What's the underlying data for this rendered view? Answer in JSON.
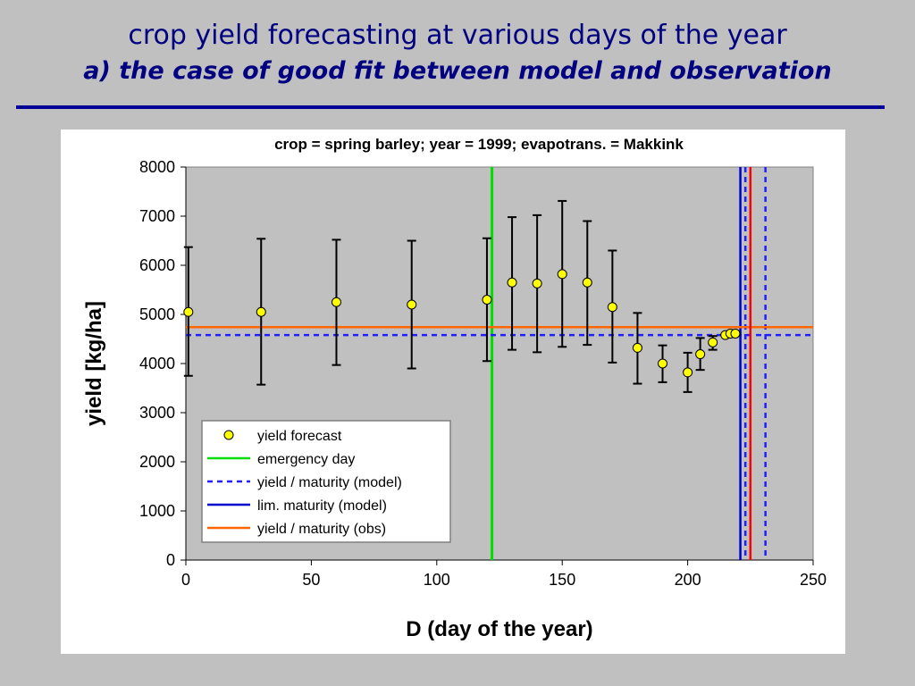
{
  "slide": {
    "title_line1": "crop yield forecasting at various days of the year",
    "title_line2": "a) the case of good fit between model and observation"
  },
  "colors": {
    "background": "#c0c0c0",
    "title": "#000080",
    "plot_area": "#c0c0c0",
    "forecast_marker": "#ffff00",
    "emergency_day": "#00dd00",
    "model_yield": "#1f1fff",
    "model_maturity": "#0000cc",
    "observed": "#ff6600",
    "observed_maturity": "#ff0000"
  },
  "chart_data": {
    "type": "scatter",
    "title": "crop = spring barley; year = 1999; evapotrans. = Makkink",
    "xlabel": "D  (day of the year)",
    "ylabel": "yield  [kg/ha]",
    "xlim": [
      0,
      250
    ],
    "ylim": [
      0,
      8000
    ],
    "xticks": [
      0,
      50,
      100,
      150,
      200,
      250
    ],
    "yticks": [
      0,
      1000,
      2000,
      3000,
      4000,
      5000,
      6000,
      7000,
      8000
    ],
    "grid": false,
    "legend_position": "lower-left",
    "series": [
      {
        "name": "yield forecast",
        "x": [
          1,
          30,
          60,
          90,
          120,
          130,
          140,
          150,
          160,
          170,
          180,
          190,
          200,
          205,
          210,
          215,
          217,
          219
        ],
        "y": [
          5050,
          5050,
          5250,
          5200,
          5300,
          5650,
          5630,
          5820,
          5650,
          5150,
          4320,
          4000,
          3820,
          4190,
          4430,
          4580,
          4610,
          4610
        ],
        "err_low": [
          3750,
          3570,
          3970,
          3900,
          4050,
          4280,
          4230,
          4340,
          4380,
          4020,
          3590,
          3620,
          3420,
          3870,
          4280,
          null,
          null,
          null
        ],
        "err_high": [
          6370,
          6540,
          6520,
          6500,
          6550,
          6980,
          7020,
          7310,
          6900,
          6300,
          5030,
          4370,
          4220,
          4520,
          4560,
          null,
          null,
          null
        ]
      }
    ],
    "reference_lines": [
      {
        "name": "emergency day",
        "orientation": "vertical",
        "value": 122,
        "style": "solid"
      },
      {
        "name": "yield / maturity (model)",
        "orientation": "horizontal",
        "value": 4580,
        "style": "dashed"
      },
      {
        "name": "yield / maturity (model)",
        "orientation": "vertical",
        "value": 223,
        "style": "dashed"
      },
      {
        "name": "yield / maturity (model)",
        "orientation": "vertical",
        "value": 231,
        "style": "dashed"
      },
      {
        "name": "lim. maturity (model)",
        "orientation": "vertical",
        "value": 221,
        "style": "solid"
      },
      {
        "name": "yield / maturity (obs)",
        "orientation": "horizontal",
        "value": 4740,
        "style": "solid"
      },
      {
        "name": "yield / maturity (obs)",
        "orientation": "vertical",
        "value": 225,
        "style": "solid"
      }
    ],
    "legend": [
      {
        "label": "yield forecast",
        "symbol": "marker"
      },
      {
        "label": "emergency day",
        "symbol": "line-solid-green"
      },
      {
        "label": "yield / maturity (model)",
        "symbol": "line-dashed-blue"
      },
      {
        "label": "lim. maturity (model)",
        "symbol": "line-solid-blue"
      },
      {
        "label": "yield / maturity (obs)",
        "symbol": "line-solid-orange"
      }
    ]
  }
}
